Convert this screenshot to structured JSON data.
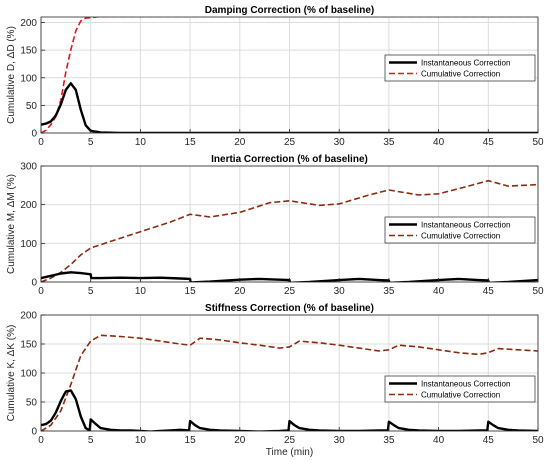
{
  "chart_data": [
    {
      "type": "line",
      "title": "Damping Correction (% of baseline)",
      "xlabel": "",
      "ylabel": "Cumulative D, ΔD (%)",
      "xlim": [
        0,
        50
      ],
      "ylim": [
        0,
        210
      ],
      "xticks": [
        "0",
        "5",
        "10",
        "15",
        "20",
        "25",
        "30",
        "35",
        "40",
        "45",
        "50"
      ],
      "yticks": [
        "0",
        "50",
        "100",
        "150",
        "200"
      ],
      "grid": true,
      "legend": "right",
      "series": [
        {
          "name": "Instantaneous Correction",
          "color": "#000000",
          "style": "solid",
          "x": [
            0,
            0.5,
            1,
            1.5,
            2,
            2.5,
            3,
            3.5,
            4,
            4.5,
            5,
            6,
            8,
            10,
            20,
            30,
            40,
            50
          ],
          "y": [
            15,
            17,
            21,
            32,
            52,
            78,
            90,
            78,
            42,
            14,
            4,
            1,
            0,
            0,
            0,
            0,
            0,
            0
          ]
        },
        {
          "name": "Cumulative Correction",
          "color": "#e8131a",
          "style": "dashed",
          "x": [
            0,
            0.5,
            1,
            1.5,
            2,
            2.5,
            3,
            3.5,
            4,
            4.5,
            5,
            5.5,
            6,
            10,
            20,
            30,
            40,
            50
          ],
          "y": [
            0,
            5,
            15,
            30,
            60,
            110,
            150,
            185,
            203,
            208,
            209,
            210,
            211,
            211,
            211,
            211,
            211,
            211
          ]
        }
      ]
    },
    {
      "type": "line",
      "title": "Inertia Correction (% of baseline)",
      "xlabel": "",
      "ylabel": "Cumulative M, ΔM (%)",
      "xlim": [
        0,
        50
      ],
      "ylim": [
        0,
        300
      ],
      "xticks": [
        "0",
        "5",
        "10",
        "15",
        "20",
        "25",
        "30",
        "35",
        "40",
        "45",
        "50"
      ],
      "yticks": [
        "0",
        "100",
        "200",
        "300"
      ],
      "grid": true,
      "legend": "right",
      "series": [
        {
          "name": "Instantaneous Correction",
          "color": "#000000",
          "style": "solid",
          "x": [
            0,
            1,
            2,
            3,
            4,
            5,
            5.05,
            6,
            8,
            10,
            12,
            14,
            15,
            15.05,
            17,
            20,
            22,
            24,
            25,
            25.05,
            27,
            30,
            32,
            34,
            35,
            35.05,
            37,
            40,
            42,
            44,
            45,
            45.05,
            47,
            50
          ],
          "y": [
            10,
            16,
            22,
            25,
            23,
            20,
            10,
            10,
            11,
            10,
            11,
            9,
            8,
            -1,
            1,
            6,
            8,
            6,
            5,
            -2,
            0,
            5,
            8,
            5,
            4,
            -2,
            0,
            5,
            8,
            5,
            4,
            -2,
            0,
            5
          ]
        },
        {
          "name": "Cumulative Correction",
          "color": "#8b2a0e",
          "style": "dashed",
          "x": [
            0,
            1,
            2,
            3,
            4,
            5,
            7,
            10,
            13,
            15,
            17,
            20,
            23,
            25,
            28,
            30,
            33,
            35,
            38,
            40,
            43,
            45,
            47,
            50
          ],
          "y": [
            0,
            10,
            25,
            45,
            70,
            88,
            105,
            130,
            155,
            175,
            168,
            180,
            205,
            210,
            198,
            202,
            225,
            238,
            225,
            228,
            248,
            262,
            248,
            252
          ]
        }
      ]
    },
    {
      "type": "line",
      "title": "Stiffness Correction (% of baseline)",
      "xlabel": "Time (min)",
      "ylabel": "Cumulative K, ΔK (%)",
      "xlim": [
        0,
        50
      ],
      "ylim": [
        0,
        200
      ],
      "xticks": [
        "0",
        "5",
        "10",
        "15",
        "20",
        "25",
        "30",
        "35",
        "40",
        "45",
        "50"
      ],
      "yticks": [
        "0",
        "50",
        "100",
        "150",
        "200"
      ],
      "grid": true,
      "legend": "right",
      "series": [
        {
          "name": "Instantaneous Correction",
          "color": "#000000",
          "style": "solid",
          "x": [
            0,
            0.5,
            1,
            1.5,
            2,
            2.5,
            3,
            3.5,
            4,
            4.5,
            4.9,
            5,
            5.5,
            6,
            7,
            8,
            9,
            10,
            11,
            12,
            13,
            14,
            14.9,
            15,
            15.5,
            16,
            17,
            18,
            20,
            22,
            24,
            24.9,
            25,
            25.5,
            26,
            27,
            28,
            30,
            32,
            34,
            34.9,
            35,
            35.5,
            36,
            37,
            38,
            40,
            42,
            44,
            44.9,
            45,
            45.5,
            46,
            47,
            48,
            50
          ],
          "y": [
            10,
            12,
            18,
            32,
            52,
            68,
            70,
            55,
            25,
            5,
            1,
            20,
            12,
            5,
            2,
            1,
            1,
            0,
            -1,
            0,
            1,
            2,
            1,
            17,
            10,
            5,
            2,
            1,
            0,
            -1,
            0,
            1,
            17,
            10,
            5,
            2,
            1,
            0,
            0,
            1,
            1,
            16,
            10,
            5,
            2,
            1,
            0,
            0,
            1,
            1,
            16,
            10,
            5,
            2,
            1,
            0
          ]
        },
        {
          "name": "Cumulative Correction",
          "color": "#8b2a0e",
          "style": "dashed",
          "x": [
            0,
            1,
            2,
            3,
            4,
            5,
            6,
            8,
            10,
            12,
            14,
            15,
            16,
            18,
            20,
            22,
            24,
            25,
            26,
            28,
            30,
            32,
            34,
            35,
            36,
            38,
            40,
            42,
            44,
            45,
            46,
            48,
            50
          ],
          "y": [
            0,
            10,
            35,
            80,
            130,
            155,
            165,
            163,
            160,
            155,
            150,
            148,
            160,
            157,
            152,
            148,
            143,
            145,
            155,
            152,
            148,
            143,
            138,
            140,
            148,
            145,
            140,
            135,
            132,
            135,
            142,
            140,
            138
          ]
        }
      ]
    }
  ]
}
